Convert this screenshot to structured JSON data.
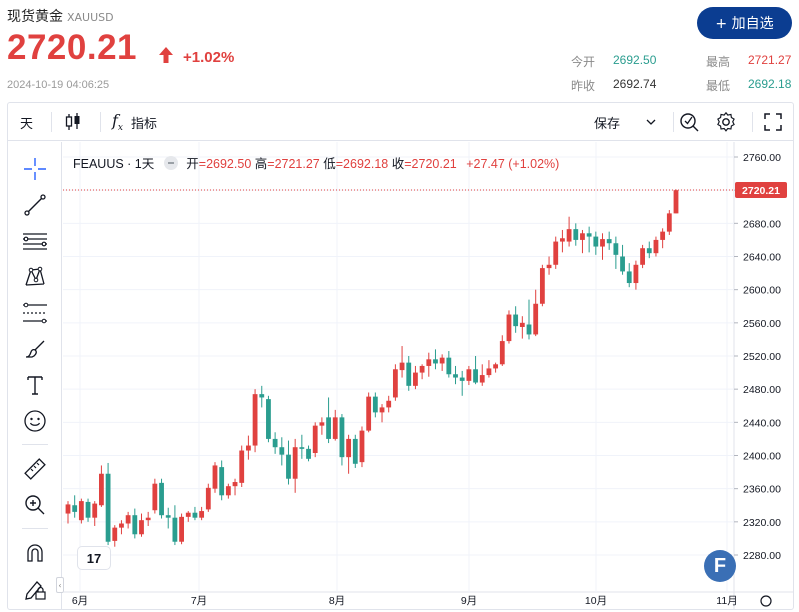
{
  "header": {
    "title": "现货黄金",
    "symbol": "XAUUSD",
    "price": "2720.21",
    "change_pct": "+1.02%",
    "timestamp": "2024-10-19 04:06:25",
    "add_button": "+ 加自选",
    "stats": {
      "open_label": "今开",
      "open_value": "2692.50",
      "prev_close_label": "昨收",
      "prev_close_value": "2692.74",
      "high_label": "最高",
      "high_value": "2721.27",
      "low_label": "最低",
      "low_value": "2692.18"
    }
  },
  "toolbar": {
    "interval": "天",
    "indicators_label": "指标",
    "save_label": "保存"
  },
  "legend": {
    "symbol": "FEAUUS · 1天",
    "open_label": "开",
    "open_value": "=2692.50",
    "high_label": "高",
    "high_value": "=2721.27",
    "low_label": "低",
    "low_value": "=2692.18",
    "close_label": "收",
    "close_value": "=2720.21",
    "change": "+27.47 (+1.02%)"
  },
  "branding": {
    "tv_logo": "17",
    "f_badge": "F"
  },
  "colors": {
    "up": "#e0413f",
    "down": "#2a9d8f",
    "accent": "#0b3d91"
  },
  "icons": [
    "crosshair-icon",
    "trendline-icon",
    "horizontal-lines-icon",
    "pattern-icon",
    "fib-icon",
    "brush-icon",
    "text-icon",
    "emoji-icon",
    "ruler-icon",
    "zoom-icon",
    "magnet-icon",
    "lock-pencil-icon",
    "candle-type-icon",
    "fx-icon",
    "chevron-down-icon",
    "alert-icon",
    "gear-icon",
    "fullscreen-icon"
  ],
  "chart_data": {
    "type": "candlestick",
    "y_range": [
      2260,
      2770
    ],
    "y_ticks": [
      "2760.00",
      "2720.00",
      "2680.00",
      "2640.00",
      "2600.00",
      "2560.00",
      "2520.00",
      "2480.00",
      "2440.00",
      "2400.00",
      "2360.00",
      "2320.00",
      "2280.00"
    ],
    "x_labels": [
      "6月",
      "7月",
      "8月",
      "9月",
      "10月",
      "11月"
    ],
    "last_price_label": "2720.21",
    "candles": [
      {
        "o": 2330,
        "h": 2345,
        "l": 2318,
        "c": 2341
      },
      {
        "o": 2340,
        "h": 2352,
        "l": 2325,
        "c": 2332
      },
      {
        "o": 2322,
        "h": 2348,
        "l": 2318,
        "c": 2345
      },
      {
        "o": 2344,
        "h": 2348,
        "l": 2320,
        "c": 2325
      },
      {
        "o": 2325,
        "h": 2345,
        "l": 2315,
        "c": 2342
      },
      {
        "o": 2340,
        "h": 2388,
        "l": 2338,
        "c": 2378
      },
      {
        "o": 2378,
        "h": 2391,
        "l": 2292,
        "c": 2296
      },
      {
        "o": 2297,
        "h": 2316,
        "l": 2290,
        "c": 2313
      },
      {
        "o": 2313,
        "h": 2322,
        "l": 2305,
        "c": 2318
      },
      {
        "o": 2318,
        "h": 2332,
        "l": 2312,
        "c": 2328
      },
      {
        "o": 2328,
        "h": 2336,
        "l": 2300,
        "c": 2305
      },
      {
        "o": 2305,
        "h": 2330,
        "l": 2302,
        "c": 2322
      },
      {
        "o": 2322,
        "h": 2332,
        "l": 2315,
        "c": 2325
      },
      {
        "o": 2334,
        "h": 2372,
        "l": 2330,
        "c": 2366
      },
      {
        "o": 2367,
        "h": 2372,
        "l": 2324,
        "c": 2328
      },
      {
        "o": 2328,
        "h": 2337,
        "l": 2312,
        "c": 2325
      },
      {
        "o": 2325,
        "h": 2340,
        "l": 2292,
        "c": 2296
      },
      {
        "o": 2296,
        "h": 2330,
        "l": 2293,
        "c": 2326
      },
      {
        "o": 2326,
        "h": 2333,
        "l": 2320,
        "c": 2331
      },
      {
        "o": 2331,
        "h": 2338,
        "l": 2322,
        "c": 2325
      },
      {
        "o": 2325,
        "h": 2338,
        "l": 2322,
        "c": 2333
      },
      {
        "o": 2335,
        "h": 2366,
        "l": 2332,
        "c": 2361
      },
      {
        "o": 2360,
        "h": 2392,
        "l": 2355,
        "c": 2388
      },
      {
        "o": 2386,
        "h": 2394,
        "l": 2346,
        "c": 2352
      },
      {
        "o": 2352,
        "h": 2366,
        "l": 2348,
        "c": 2363
      },
      {
        "o": 2363,
        "h": 2372,
        "l": 2352,
        "c": 2368
      },
      {
        "o": 2367,
        "h": 2412,
        "l": 2362,
        "c": 2406
      },
      {
        "o": 2406,
        "h": 2424,
        "l": 2395,
        "c": 2412
      },
      {
        "o": 2412,
        "h": 2480,
        "l": 2404,
        "c": 2474
      },
      {
        "o": 2474,
        "h": 2484,
        "l": 2458,
        "c": 2470
      },
      {
        "o": 2468,
        "h": 2472,
        "l": 2416,
        "c": 2420
      },
      {
        "o": 2420,
        "h": 2428,
        "l": 2402,
        "c": 2410
      },
      {
        "o": 2410,
        "h": 2422,
        "l": 2388,
        "c": 2401
      },
      {
        "o": 2401,
        "h": 2418,
        "l": 2365,
        "c": 2372
      },
      {
        "o": 2372,
        "h": 2420,
        "l": 2355,
        "c": 2410
      },
      {
        "o": 2410,
        "h": 2425,
        "l": 2396,
        "c": 2408
      },
      {
        "o": 2408,
        "h": 2412,
        "l": 2393,
        "c": 2396
      },
      {
        "o": 2403,
        "h": 2440,
        "l": 2398,
        "c": 2436
      },
      {
        "o": 2436,
        "h": 2446,
        "l": 2425,
        "c": 2440
      },
      {
        "o": 2446,
        "h": 2470,
        "l": 2415,
        "c": 2420
      },
      {
        "o": 2420,
        "h": 2455,
        "l": 2418,
        "c": 2446
      },
      {
        "o": 2446,
        "h": 2450,
        "l": 2388,
        "c": 2398
      },
      {
        "o": 2398,
        "h": 2425,
        "l": 2378,
        "c": 2420
      },
      {
        "o": 2420,
        "h": 2425,
        "l": 2385,
        "c": 2390
      },
      {
        "o": 2392,
        "h": 2435,
        "l": 2386,
        "c": 2430
      },
      {
        "o": 2430,
        "h": 2476,
        "l": 2428,
        "c": 2471
      },
      {
        "o": 2471,
        "h": 2476,
        "l": 2446,
        "c": 2452
      },
      {
        "o": 2452,
        "h": 2462,
        "l": 2440,
        "c": 2458
      },
      {
        "o": 2458,
        "h": 2472,
        "l": 2452,
        "c": 2466
      },
      {
        "o": 2470,
        "h": 2510,
        "l": 2466,
        "c": 2504
      },
      {
        "o": 2503,
        "h": 2532,
        "l": 2494,
        "c": 2512
      },
      {
        "o": 2512,
        "h": 2520,
        "l": 2478,
        "c": 2484
      },
      {
        "o": 2484,
        "h": 2508,
        "l": 2480,
        "c": 2500
      },
      {
        "o": 2500,
        "h": 2510,
        "l": 2492,
        "c": 2508
      },
      {
        "o": 2508,
        "h": 2524,
        "l": 2495,
        "c": 2516
      },
      {
        "o": 2516,
        "h": 2528,
        "l": 2504,
        "c": 2511
      },
      {
        "o": 2511,
        "h": 2522,
        "l": 2502,
        "c": 2518
      },
      {
        "o": 2518,
        "h": 2526,
        "l": 2494,
        "c": 2498
      },
      {
        "o": 2498,
        "h": 2508,
        "l": 2486,
        "c": 2494
      },
      {
        "o": 2494,
        "h": 2502,
        "l": 2472,
        "c": 2490
      },
      {
        "o": 2490,
        "h": 2508,
        "l": 2485,
        "c": 2504
      },
      {
        "o": 2504,
        "h": 2520,
        "l": 2486,
        "c": 2488
      },
      {
        "o": 2488,
        "h": 2510,
        "l": 2484,
        "c": 2497
      },
      {
        "o": 2497,
        "h": 2515,
        "l": 2494,
        "c": 2505
      },
      {
        "o": 2505,
        "h": 2512,
        "l": 2500,
        "c": 2510
      },
      {
        "o": 2510,
        "h": 2545,
        "l": 2508,
        "c": 2538
      },
      {
        "o": 2538,
        "h": 2575,
        "l": 2535,
        "c": 2570
      },
      {
        "o": 2570,
        "h": 2580,
        "l": 2548,
        "c": 2556
      },
      {
        "o": 2555,
        "h": 2568,
        "l": 2541,
        "c": 2560
      },
      {
        "o": 2558,
        "h": 2588,
        "l": 2540,
        "c": 2546
      },
      {
        "o": 2546,
        "h": 2600,
        "l": 2544,
        "c": 2583
      },
      {
        "o": 2583,
        "h": 2630,
        "l": 2580,
        "c": 2626
      },
      {
        "o": 2626,
        "h": 2640,
        "l": 2618,
        "c": 2630
      },
      {
        "o": 2630,
        "h": 2664,
        "l": 2625,
        "c": 2658
      },
      {
        "o": 2658,
        "h": 2672,
        "l": 2645,
        "c": 2662
      },
      {
        "o": 2658,
        "h": 2688,
        "l": 2652,
        "c": 2673
      },
      {
        "o": 2673,
        "h": 2680,
        "l": 2653,
        "c": 2660
      },
      {
        "o": 2660,
        "h": 2672,
        "l": 2644,
        "c": 2668
      },
      {
        "o": 2668,
        "h": 2676,
        "l": 2645,
        "c": 2664
      },
      {
        "o": 2664,
        "h": 2670,
        "l": 2642,
        "c": 2652
      },
      {
        "o": 2652,
        "h": 2668,
        "l": 2636,
        "c": 2661
      },
      {
        "o": 2661,
        "h": 2670,
        "l": 2648,
        "c": 2656
      },
      {
        "o": 2656,
        "h": 2664,
        "l": 2625,
        "c": 2642
      },
      {
        "o": 2640,
        "h": 2654,
        "l": 2618,
        "c": 2622
      },
      {
        "o": 2622,
        "h": 2632,
        "l": 2603,
        "c": 2608
      },
      {
        "o": 2608,
        "h": 2635,
        "l": 2600,
        "c": 2630
      },
      {
        "o": 2630,
        "h": 2654,
        "l": 2626,
        "c": 2650
      },
      {
        "o": 2650,
        "h": 2658,
        "l": 2638,
        "c": 2644
      },
      {
        "o": 2644,
        "h": 2664,
        "l": 2640,
        "c": 2660
      },
      {
        "o": 2660,
        "h": 2674,
        "l": 2650,
        "c": 2670
      },
      {
        "o": 2670,
        "h": 2696,
        "l": 2666,
        "c": 2692
      },
      {
        "o": 2692,
        "h": 2721,
        "l": 2692,
        "c": 2720
      }
    ]
  }
}
